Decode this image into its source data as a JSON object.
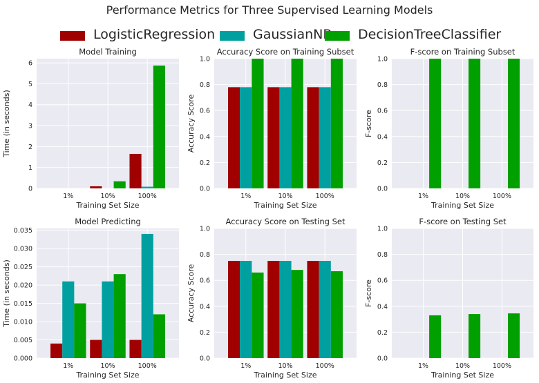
{
  "suptitle": "Performance Metrics for Three Supervised Learning Models",
  "legend": {
    "placement": "top-center",
    "items": [
      {
        "label": "LogisticRegression",
        "color": "#a00000"
      },
      {
        "label": "GaussianNB",
        "color": "#00a0a0"
      },
      {
        "label": "DecisionTreeClassifier",
        "color": "#00a000"
      }
    ]
  },
  "colors": {
    "panel_bg": "#eaeaf2",
    "grid": "#ffffff",
    "text": "#262626"
  },
  "chart_data": [
    {
      "type": "bar",
      "title": "Model Training",
      "xlabel": "Training Set Size",
      "ylabel": "Time (in seconds)",
      "categories": [
        "1%",
        "10%",
        "100%"
      ],
      "ylim": [
        0,
        6.2
      ],
      "yticks": [
        0,
        1,
        2,
        3,
        4,
        5,
        6
      ],
      "ytick_labels": [
        "0",
        "1",
        "2",
        "3",
        "4",
        "5",
        "6"
      ],
      "grid": true,
      "series": [
        {
          "name": "LogisticRegression",
          "values": [
            0.0,
            0.1,
            1.65
          ]
        },
        {
          "name": "GaussianNB",
          "values": [
            0.0,
            0.0,
            0.08
          ]
        },
        {
          "name": "DecisionTreeClassifier",
          "values": [
            0.0,
            0.34,
            5.87
          ]
        }
      ]
    },
    {
      "type": "bar",
      "title": "Accuracy Score on Training Subset",
      "xlabel": "Training Set Size",
      "ylabel": "Accuracy Score",
      "categories": [
        "1%",
        "10%",
        "100%"
      ],
      "ylim": [
        0,
        1.0
      ],
      "yticks": [
        0,
        0.2,
        0.4,
        0.6,
        0.8,
        1.0
      ],
      "ytick_labels": [
        "0.0",
        "0.2",
        "0.4",
        "0.6",
        "0.8",
        "1.0"
      ],
      "grid": true,
      "series": [
        {
          "name": "LogisticRegression",
          "values": [
            0.78,
            0.78,
            0.78
          ]
        },
        {
          "name": "GaussianNB",
          "values": [
            0.78,
            0.78,
            0.78
          ]
        },
        {
          "name": "DecisionTreeClassifier",
          "values": [
            1.0,
            1.0,
            1.0
          ]
        }
      ]
    },
    {
      "type": "bar",
      "title": "F-score on Training Subset",
      "xlabel": "Training Set Size",
      "ylabel": "F-score",
      "categories": [
        "1%",
        "10%",
        "100%"
      ],
      "ylim": [
        0,
        1.0
      ],
      "yticks": [
        0,
        0.2,
        0.4,
        0.6,
        0.8,
        1.0
      ],
      "ytick_labels": [
        "0.0",
        "0.2",
        "0.4",
        "0.6",
        "0.8",
        "1.0"
      ],
      "grid": true,
      "series": [
        {
          "name": "LogisticRegression",
          "values": [
            0,
            0,
            0
          ]
        },
        {
          "name": "GaussianNB",
          "values": [
            0,
            0,
            0
          ]
        },
        {
          "name": "DecisionTreeClassifier",
          "values": [
            1.0,
            1.0,
            1.0
          ]
        }
      ]
    },
    {
      "type": "bar",
      "title": "Model Predicting",
      "xlabel": "Training Set Size",
      "ylabel": "Time (in seconds)",
      "categories": [
        "1%",
        "10%",
        "100%"
      ],
      "ylim": [
        0,
        0.0355
      ],
      "yticks": [
        0,
        0.005,
        0.01,
        0.015,
        0.02,
        0.025,
        0.03,
        0.035
      ],
      "ytick_labels": [
        "0.000",
        "0.005",
        "0.010",
        "0.015",
        "0.020",
        "0.025",
        "0.030",
        "0.035"
      ],
      "grid": true,
      "series": [
        {
          "name": "LogisticRegression",
          "values": [
            0.004,
            0.005,
            0.005
          ]
        },
        {
          "name": "GaussianNB",
          "values": [
            0.021,
            0.021,
            0.034
          ]
        },
        {
          "name": "DecisionTreeClassifier",
          "values": [
            0.015,
            0.023,
            0.012
          ]
        }
      ]
    },
    {
      "type": "bar",
      "title": "Accuracy Score on Testing Set",
      "xlabel": "Training Set Size",
      "ylabel": "Accuracy Score",
      "categories": [
        "1%",
        "10%",
        "100%"
      ],
      "ylim": [
        0,
        1.0
      ],
      "yticks": [
        0,
        0.2,
        0.4,
        0.6,
        0.8,
        1.0
      ],
      "ytick_labels": [
        "0.0",
        "0.2",
        "0.4",
        "0.6",
        "0.8",
        "1.0"
      ],
      "grid": true,
      "series": [
        {
          "name": "LogisticRegression",
          "values": [
            0.75,
            0.75,
            0.75
          ]
        },
        {
          "name": "GaussianNB",
          "values": [
            0.75,
            0.75,
            0.75
          ]
        },
        {
          "name": "DecisionTreeClassifier",
          "values": [
            0.66,
            0.68,
            0.67
          ]
        }
      ]
    },
    {
      "type": "bar",
      "title": "F-score on Testing Set",
      "xlabel": "Training Set Size",
      "ylabel": "F-score",
      "categories": [
        "1%",
        "10%",
        "100%"
      ],
      "ylim": [
        0,
        1.0
      ],
      "yticks": [
        0,
        0.2,
        0.4,
        0.6,
        0.8,
        1.0
      ],
      "ytick_labels": [
        "0.0",
        "0.2",
        "0.4",
        "0.6",
        "0.8",
        "1.0"
      ],
      "grid": true,
      "series": [
        {
          "name": "LogisticRegression",
          "values": [
            0,
            0,
            0
          ]
        },
        {
          "name": "GaussianNB",
          "values": [
            0,
            0,
            0
          ]
        },
        {
          "name": "DecisionTreeClassifier",
          "values": [
            0.33,
            0.34,
            0.345
          ]
        }
      ]
    }
  ]
}
